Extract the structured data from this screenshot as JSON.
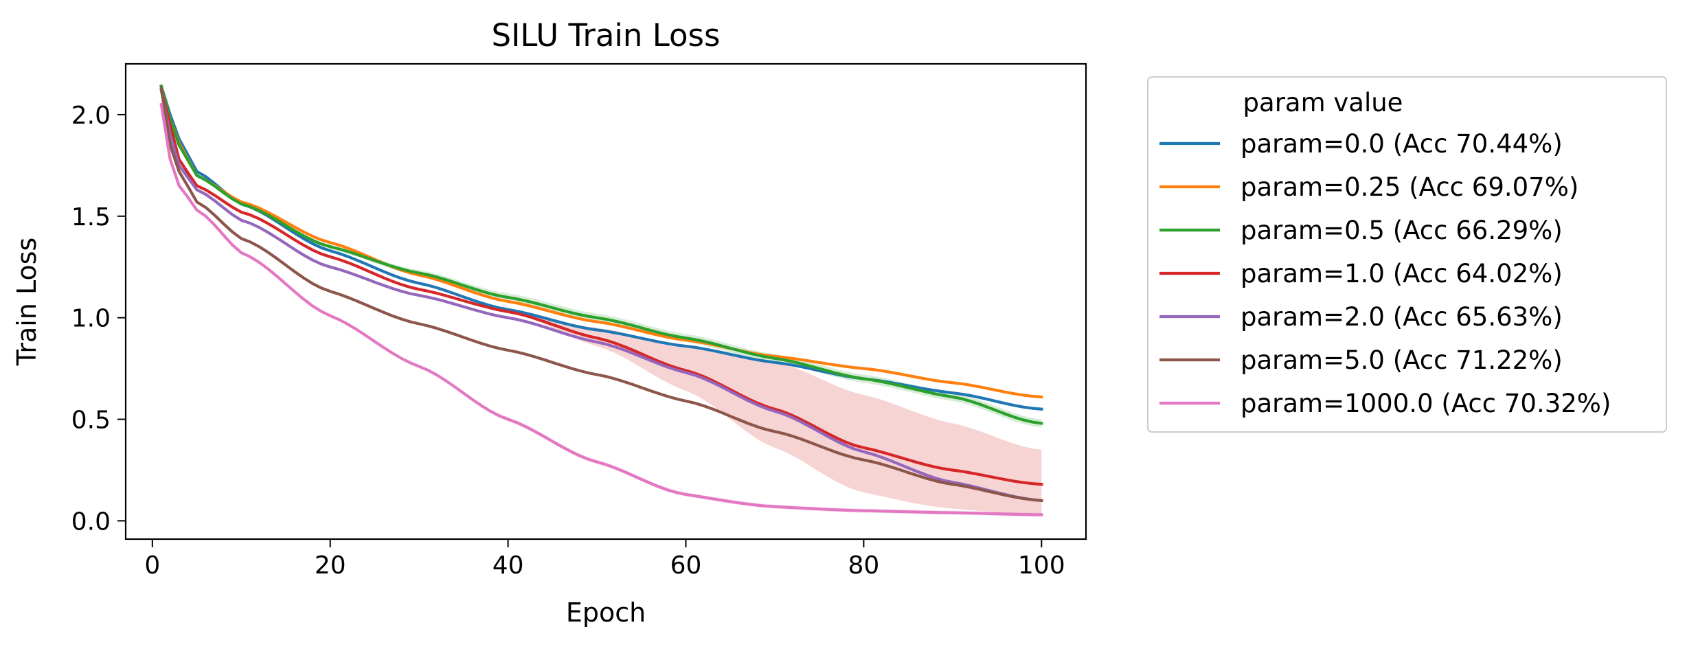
{
  "chart_data": {
    "type": "line",
    "title": "SILU Train Loss",
    "xlabel": "Epoch",
    "ylabel": "Train Loss",
    "xlim": [
      -3,
      105
    ],
    "ylim": [
      -0.09,
      2.25
    ],
    "xticks": [
      0,
      20,
      40,
      60,
      80,
      100
    ],
    "yticks": [
      0.0,
      0.5,
      1.0,
      1.5,
      2.0
    ],
    "xtick_labels": [
      "0",
      "20",
      "40",
      "60",
      "80",
      "100"
    ],
    "ytick_labels": [
      "0.0",
      "0.5",
      "1.0",
      "1.5",
      "2.0"
    ],
    "grid": false,
    "legend": {
      "title": "param value",
      "placement": "outside-right-top"
    },
    "x": [
      1,
      2,
      3,
      5,
      10,
      20,
      30,
      40,
      50,
      60,
      70,
      80,
      90,
      100
    ],
    "series": [
      {
        "name": "param=0.0 (Acc 70.44%)",
        "color": "#1f77b4",
        "values": [
          2.14,
          2.0,
          1.88,
          1.72,
          1.56,
          1.33,
          1.17,
          1.04,
          0.94,
          0.86,
          0.78,
          0.7,
          0.63,
          0.55
        ],
        "band": 0.0
      },
      {
        "name": "param=0.25 (Acc 69.07%)",
        "color": "#ff7f0e",
        "values": [
          2.14,
          1.98,
          1.86,
          1.7,
          1.57,
          1.37,
          1.21,
          1.08,
          0.98,
          0.89,
          0.81,
          0.75,
          0.68,
          0.61
        ],
        "band": 0.0
      },
      {
        "name": "param=0.5 (Acc 66.29%)",
        "color": "#2ca02c",
        "values": [
          2.14,
          1.98,
          1.85,
          1.7,
          1.56,
          1.35,
          1.22,
          1.1,
          1.0,
          0.9,
          0.8,
          0.7,
          0.61,
          0.48
        ],
        "band": 0.02
      },
      {
        "name": "param=1.0 (Acc 64.02%)",
        "color": "#d62728",
        "values": [
          2.12,
          1.95,
          1.78,
          1.65,
          1.52,
          1.3,
          1.14,
          1.03,
          0.9,
          0.74,
          0.55,
          0.36,
          0.25,
          0.18
        ],
        "band_upper": [
          2.12,
          1.95,
          1.78,
          1.65,
          1.52,
          1.3,
          1.14,
          1.03,
          0.95,
          0.86,
          0.78,
          0.62,
          0.48,
          0.35
        ],
        "band_lower": [
          2.12,
          1.95,
          1.78,
          1.65,
          1.52,
          1.3,
          1.14,
          1.03,
          0.86,
          0.64,
          0.36,
          0.14,
          0.06,
          0.03
        ]
      },
      {
        "name": "param=2.0 (Acc 65.63%)",
        "color": "#9467bd",
        "values": [
          2.12,
          1.9,
          1.75,
          1.63,
          1.48,
          1.25,
          1.11,
          1.0,
          0.88,
          0.73,
          0.54,
          0.34,
          0.19,
          0.1
        ],
        "band": 0.0
      },
      {
        "name": "param=5.0 (Acc 71.22%)",
        "color": "#8c564b",
        "values": [
          2.13,
          1.85,
          1.72,
          1.57,
          1.39,
          1.13,
          0.97,
          0.84,
          0.72,
          0.59,
          0.44,
          0.3,
          0.18,
          0.1
        ],
        "band": 0.0
      },
      {
        "name": "param=1000.0 (Acc 70.32%)",
        "color": "#e377c2",
        "values": [
          2.05,
          1.78,
          1.65,
          1.53,
          1.32,
          1.01,
          0.76,
          0.5,
          0.29,
          0.13,
          0.07,
          0.05,
          0.04,
          0.03
        ],
        "band": 0.01
      }
    ]
  }
}
